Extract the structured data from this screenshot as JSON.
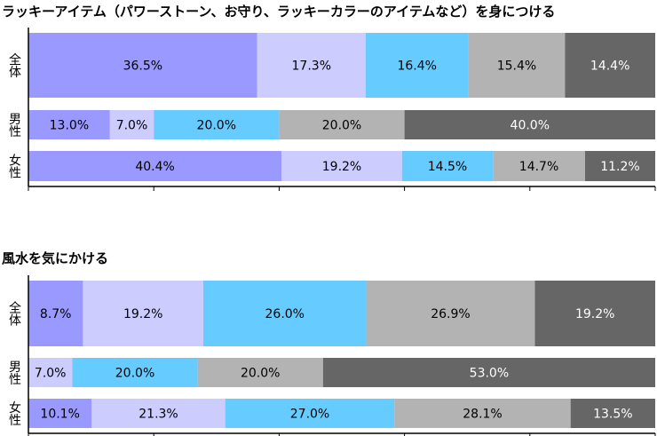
{
  "chart_data": [
    {
      "type": "stacked-bar-horizontal",
      "title": "ラッキーアイテム（パワーストーン、お守り、ラッキーカラーのアイテムなど）を身につける",
      "categories": [
        "全体",
        "男性",
        "女性"
      ],
      "xlim": [
        0,
        100
      ],
      "xticks": [
        0,
        20,
        40,
        60,
        80,
        100
      ],
      "series": [
        {
          "color": "#9999ff",
          "values": [
            36.5,
            13.0,
            40.4
          ],
          "value_labels": [
            "36.5%",
            "13.0%",
            "40.4%"
          ]
        },
        {
          "color": "#ccccff",
          "values": [
            17.3,
            7.0,
            19.2
          ],
          "value_labels": [
            "17.3%",
            "7.0%",
            "19.2%"
          ]
        },
        {
          "color": "#66ccff",
          "values": [
            16.4,
            20.0,
            14.5
          ],
          "value_labels": [
            "16.4%",
            "20.0%",
            "14.5%"
          ]
        },
        {
          "color": "#b3b3b3",
          "values": [
            15.4,
            20.0,
            14.7
          ],
          "value_labels": [
            "15.4%",
            "20.0%",
            "14.7%"
          ]
        },
        {
          "color": "#666666",
          "values": [
            14.4,
            40.0,
            11.2
          ],
          "value_labels": [
            "14.4%",
            "40.0%",
            "11.2%"
          ]
        }
      ]
    },
    {
      "type": "stacked-bar-horizontal",
      "title": "風水を気にかける",
      "categories": [
        "全体",
        "男性",
        "女性"
      ],
      "xlim": [
        0,
        100
      ],
      "xticks": [
        0,
        20,
        40,
        60,
        80,
        100
      ],
      "series": [
        {
          "color": "#9999ff",
          "values": [
            8.7,
            null,
            10.1
          ],
          "value_labels": [
            "8.7%",
            null,
            "10.1%"
          ]
        },
        {
          "color": "#ccccff",
          "values": [
            19.2,
            7.0,
            21.3
          ],
          "value_labels": [
            "19.2%",
            "7.0%",
            "21.3%"
          ]
        },
        {
          "color": "#66ccff",
          "values": [
            26.0,
            20.0,
            27.0
          ],
          "value_labels": [
            "26.0%",
            "20.0%",
            "27.0%"
          ]
        },
        {
          "color": "#b3b3b3",
          "values": [
            26.9,
            20.0,
            28.1
          ],
          "value_labels": [
            "26.9%",
            "20.0%",
            "28.1%"
          ]
        },
        {
          "color": "#666666",
          "values": [
            19.2,
            53.0,
            13.5
          ],
          "value_labels": [
            "19.2%",
            "53.0%",
            "13.5%"
          ]
        }
      ]
    }
  ]
}
